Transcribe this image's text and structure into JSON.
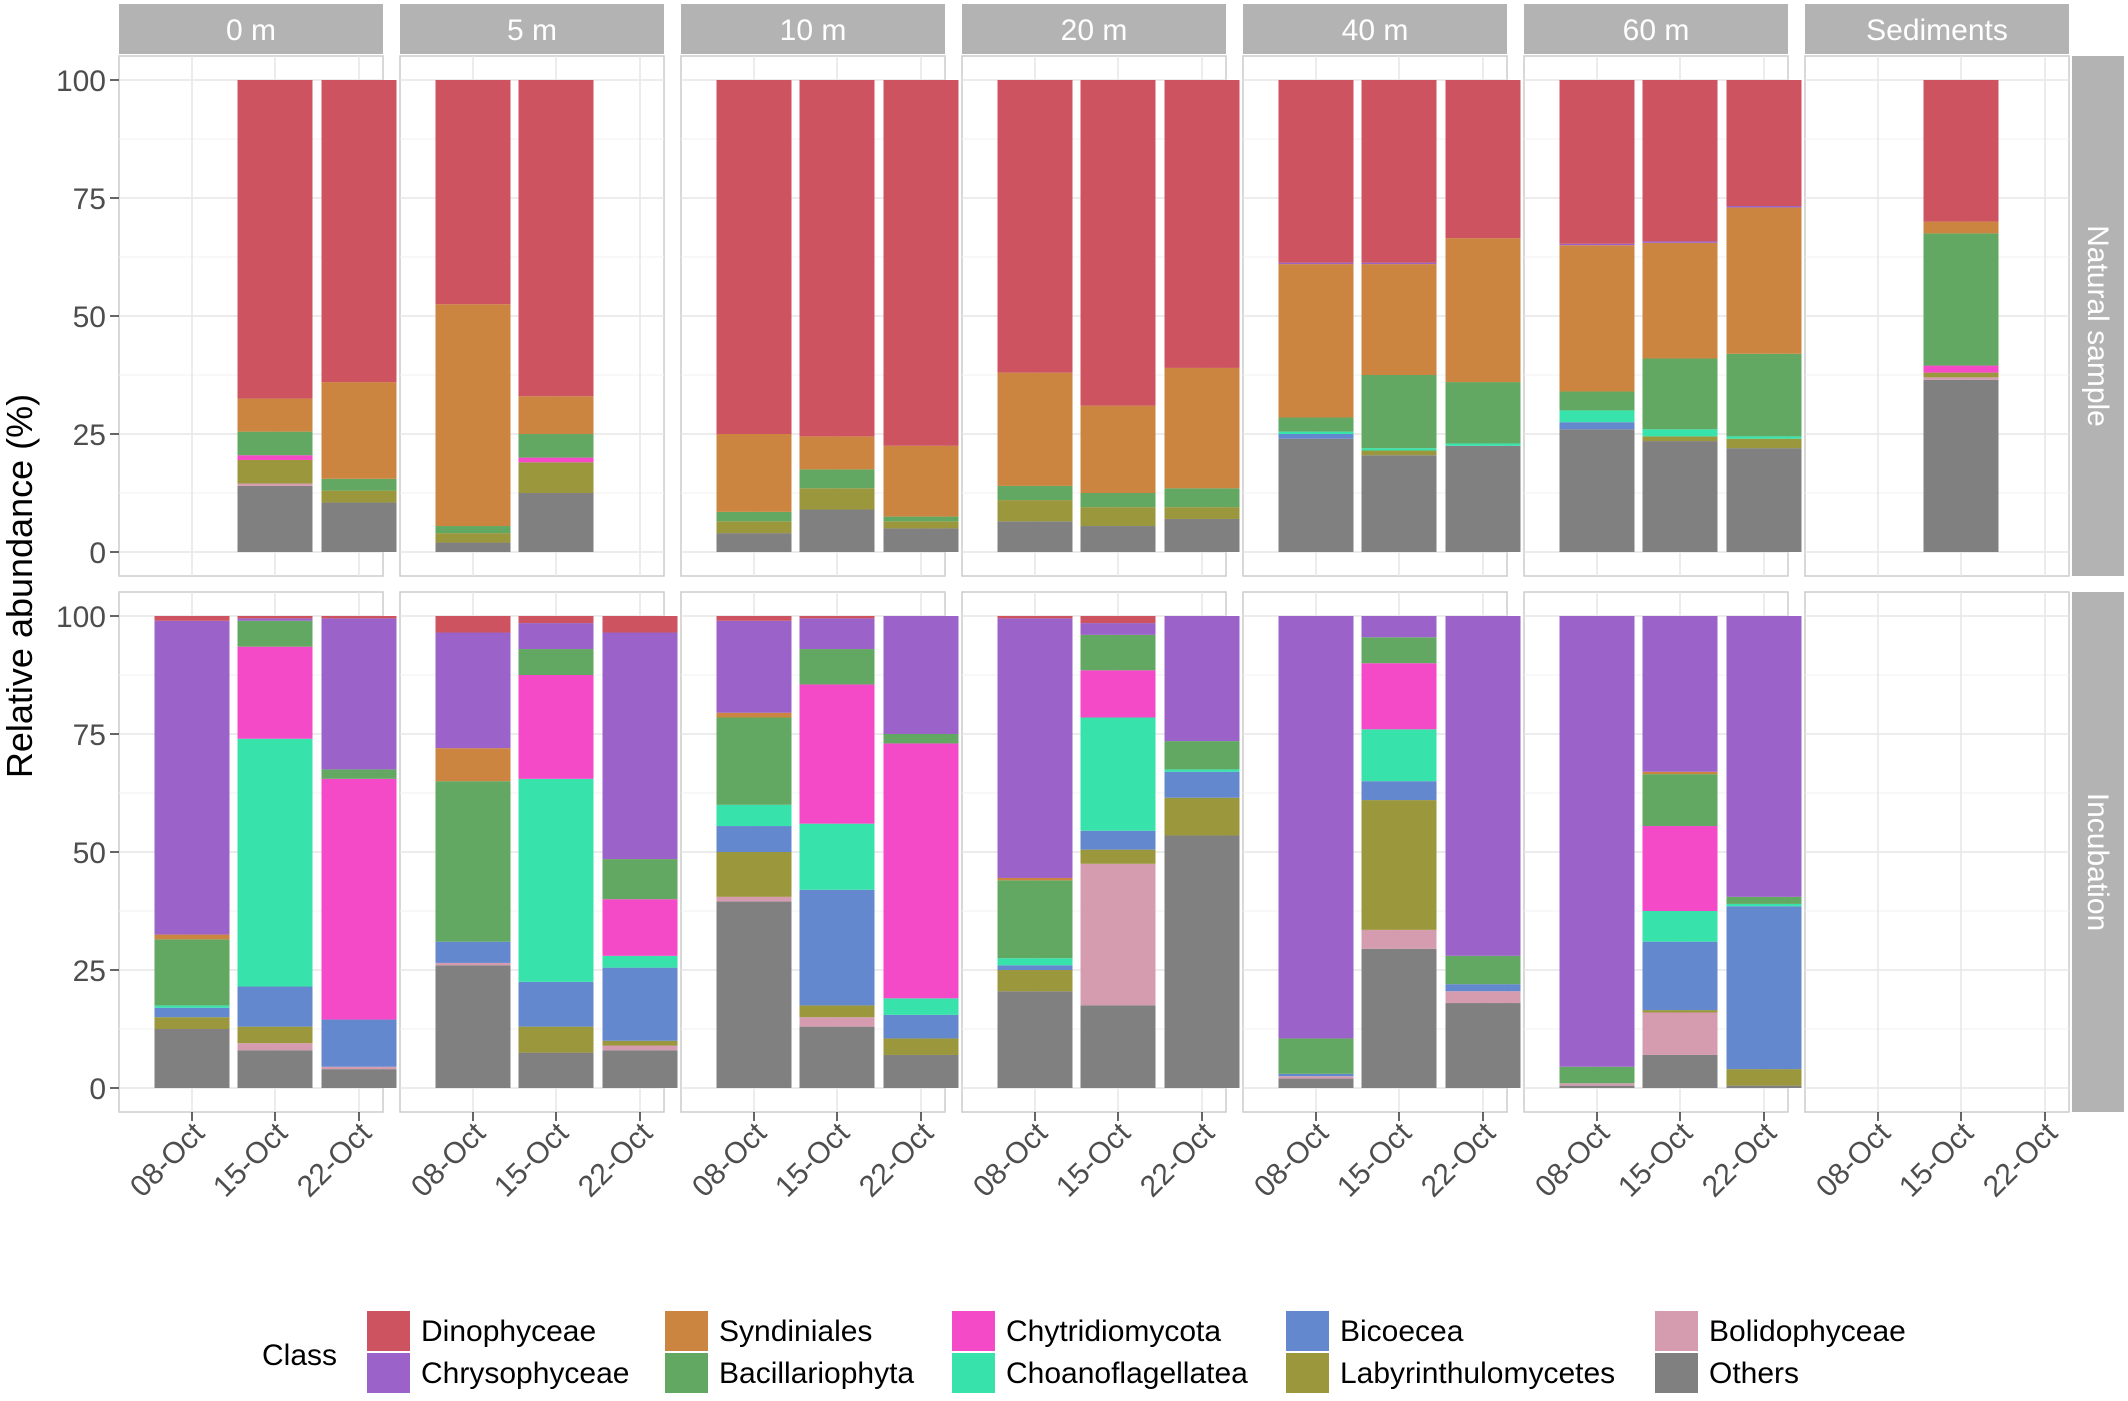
{
  "chart_data": {
    "type": "bar",
    "stacked": true,
    "ylabel": "Relative abundance (%)",
    "xlabel": "",
    "ylim": [
      0,
      100
    ],
    "yticks": [
      0,
      25,
      50,
      75,
      100
    ],
    "grid": true,
    "legend_position": "bottom",
    "legend_title": "Class",
    "categories": [
      "08-Oct",
      "15-Oct",
      "22-Oct"
    ],
    "columns": [
      "0 m",
      "5 m",
      "10 m",
      "20 m",
      "40 m",
      "60 m",
      "Sediments"
    ],
    "rows": [
      "Natural sample",
      "Incubation"
    ],
    "classes": [
      {
        "name": "Dinophyceae",
        "color": "#CD5360"
      },
      {
        "name": "Chrysophyceae",
        "color": "#9B63C9"
      },
      {
        "name": "Syndiniales",
        "color": "#CC8540"
      },
      {
        "name": "Bacillariophyta",
        "color": "#63A862"
      },
      {
        "name": "Chytridiomycota",
        "color": "#F54AC7"
      },
      {
        "name": "Choanoflagellatea",
        "color": "#38E2AB"
      },
      {
        "name": "Bicoecea",
        "color": "#6488CE"
      },
      {
        "name": "Labyrinthulomycetes",
        "color": "#9B973C"
      },
      {
        "name": "Bolidophyceae",
        "color": "#D59CB0"
      },
      {
        "name": "Others",
        "color": "#808080"
      }
    ],
    "stack_order": [
      "Others",
      "Bolidophyceae",
      "Labyrinthulomycetes",
      "Bicoecea",
      "Choanoflagellatea",
      "Chytridiomycota",
      "Bacillariophyta",
      "Syndiniales",
      "Chrysophyceae",
      "Dinophyceae"
    ],
    "panels": [
      {
        "row": "Natural sample",
        "column": "0 m",
        "bars": [
          {
            "x": "15-Oct",
            "values": {
              "Others": 14,
              "Labyrinthulomycetes": 5,
              "Bolidophyceae": 0.5,
              "Chytridiomycota": 1,
              "Bacillariophyta": 5,
              "Syndiniales": 7,
              "Dinophyceae": 67.5
            }
          },
          {
            "x": "22-Oct",
            "values": {
              "Others": 10.5,
              "Labyrinthulomycetes": 2.5,
              "Bacillariophyta": 2.5,
              "Syndiniales": 20.5,
              "Dinophyceae": 64
            }
          }
        ]
      },
      {
        "row": "Natural sample",
        "column": "5 m",
        "bars": [
          {
            "x": "08-Oct",
            "values": {
              "Others": 2,
              "Labyrinthulomycetes": 2,
              "Bacillariophyta": 1.5,
              "Syndiniales": 47,
              "Dinophyceae": 47.5
            }
          },
          {
            "x": "15-Oct",
            "values": {
              "Others": 12.5,
              "Labyrinthulomycetes": 6.5,
              "Chytridiomycota": 1,
              "Bacillariophyta": 5,
              "Syndiniales": 8,
              "Dinophyceae": 67
            }
          }
        ]
      },
      {
        "row": "Natural sample",
        "column": "10 m",
        "bars": [
          {
            "x": "08-Oct",
            "values": {
              "Others": 4,
              "Labyrinthulomycetes": 2.5,
              "Bacillariophyta": 2,
              "Syndiniales": 16.5,
              "Dinophyceae": 75
            }
          },
          {
            "x": "15-Oct",
            "values": {
              "Others": 9,
              "Labyrinthulomycetes": 4.5,
              "Bacillariophyta": 4,
              "Syndiniales": 7,
              "Dinophyceae": 75.5
            }
          },
          {
            "x": "22-Oct",
            "values": {
              "Others": 5,
              "Labyrinthulomycetes": 1.5,
              "Bacillariophyta": 1,
              "Syndiniales": 15,
              "Dinophyceae": 77.5
            }
          }
        ]
      },
      {
        "row": "Natural sample",
        "column": "20 m",
        "bars": [
          {
            "x": "08-Oct",
            "values": {
              "Others": 6.5,
              "Labyrinthulomycetes": 4.5,
              "Bacillariophyta": 3,
              "Syndiniales": 24,
              "Dinophyceae": 62
            }
          },
          {
            "x": "15-Oct",
            "values": {
              "Others": 5.5,
              "Labyrinthulomycetes": 4,
              "Bacillariophyta": 3,
              "Syndiniales": 18.5,
              "Dinophyceae": 69
            }
          },
          {
            "x": "22-Oct",
            "values": {
              "Others": 7,
              "Labyrinthulomycetes": 2.5,
              "Bacillariophyta": 4,
              "Syndiniales": 25.5,
              "Dinophyceae": 61
            }
          }
        ]
      },
      {
        "row": "Natural sample",
        "column": "40 m",
        "bars": [
          {
            "x": "08-Oct",
            "values": {
              "Others": 24,
              "Bicoecea": 1,
              "Choanoflagellatea": 0.5,
              "Bacillariophyta": 3,
              "Syndiniales": 32.5,
              "Chrysophyceae": 0.3,
              "Dinophyceae": 38.7
            }
          },
          {
            "x": "15-Oct",
            "values": {
              "Others": 20.5,
              "Labyrinthulomycetes": 1,
              "Choanoflagellatea": 0.5,
              "Bacillariophyta": 15.5,
              "Syndiniales": 23.5,
              "Chrysophyceae": 0.3,
              "Dinophyceae": 38.7
            }
          },
          {
            "x": "22-Oct",
            "values": {
              "Others": 22.5,
              "Choanoflagellatea": 0.5,
              "Bacillariophyta": 13,
              "Syndiniales": 30.5,
              "Dinophyceae": 33.5
            }
          }
        ]
      },
      {
        "row": "Natural sample",
        "column": "60 m",
        "bars": [
          {
            "x": "08-Oct",
            "values": {
              "Others": 26,
              "Bicoecea": 1.5,
              "Choanoflagellatea": 2.5,
              "Bacillariophyta": 4,
              "Syndiniales": 31,
              "Chrysophyceae": 0.3,
              "Dinophyceae": 34.7
            }
          },
          {
            "x": "15-Oct",
            "values": {
              "Others": 23.5,
              "Labyrinthulomycetes": 1,
              "Choanoflagellatea": 1.5,
              "Bacillariophyta": 15,
              "Syndiniales": 24.5,
              "Chrysophyceae": 0.3,
              "Dinophyceae": 34.2
            }
          },
          {
            "x": "22-Oct",
            "values": {
              "Others": 22,
              "Labyrinthulomycetes": 2,
              "Choanoflagellatea": 0.5,
              "Bacillariophyta": 17.5,
              "Syndiniales": 31,
              "Chrysophyceae": 0.3,
              "Dinophyceae": 26.7
            }
          }
        ]
      },
      {
        "row": "Natural sample",
        "column": "Sediments",
        "bars": [
          {
            "x": "15-Oct",
            "values": {
              "Others": 36.5,
              "Labyrinthulomycetes": 1,
              "Bolidophyceae": 0.5,
              "Chytridiomycota": 1.5,
              "Bacillariophyta": 28,
              "Syndiniales": 2.5,
              "Dinophyceae": 30
            }
          }
        ]
      },
      {
        "row": "Incubation",
        "column": "0 m",
        "bars": [
          {
            "x": "08-Oct",
            "values": {
              "Others": 12.5,
              "Labyrinthulomycetes": 2.5,
              "Bicoecea": 2,
              "Choanoflagellatea": 0.5,
              "Bacillariophyta": 14,
              "Syndiniales": 1,
              "Chrysophyceae": 66.5,
              "Dinophyceae": 1
            }
          },
          {
            "x": "15-Oct",
            "values": {
              "Others": 8,
              "Bolidophyceae": 1.5,
              "Labyrinthulomycetes": 3.5,
              "Bicoecea": 8.5,
              "Choanoflagellatea": 52.5,
              "Chytridiomycota": 19.5,
              "Bacillariophyta": 5.5,
              "Chrysophyceae": 0.5,
              "Dinophyceae": 0.5
            }
          },
          {
            "x": "22-Oct",
            "values": {
              "Others": 4,
              "Bolidophyceae": 0.5,
              "Bicoecea": 10,
              "Chytridiomycota": 51,
              "Bacillariophyta": 2,
              "Chrysophyceae": 32,
              "Dinophyceae": 0.5
            }
          }
        ]
      },
      {
        "row": "Incubation",
        "column": "5 m",
        "bars": [
          {
            "x": "08-Oct",
            "values": {
              "Others": 26,
              "Bolidophyceae": 0.5,
              "Bicoecea": 4.5,
              "Bacillariophyta": 34,
              "Syndiniales": 7,
              "Chrysophyceae": 24.5,
              "Dinophyceae": 3.5
            }
          },
          {
            "x": "15-Oct",
            "values": {
              "Others": 7.5,
              "Labyrinthulomycetes": 5.5,
              "Bicoecea": 9.5,
              "Choanoflagellatea": 43,
              "Chytridiomycota": 22,
              "Bacillariophyta": 5.5,
              "Chrysophyceae": 5.5,
              "Dinophyceae": 1.5
            }
          },
          {
            "x": "22-Oct",
            "values": {
              "Others": 8,
              "Bolidophyceae": 1,
              "Labyrinthulomycetes": 1,
              "Bicoecea": 15.5,
              "Choanoflagellatea": 2.5,
              "Chytridiomycota": 12,
              "Bacillariophyta": 8.5,
              "Chrysophyceae": 48,
              "Dinophyceae": 3.5
            }
          }
        ]
      },
      {
        "row": "Incubation",
        "column": "10 m",
        "bars": [
          {
            "x": "08-Oct",
            "values": {
              "Others": 39.5,
              "Bolidophyceae": 1,
              "Labyrinthulomycetes": 9.5,
              "Bicoecea": 5.5,
              "Choanoflagellatea": 4.5,
              "Bacillariophyta": 18.5,
              "Syndiniales": 1,
              "Chrysophyceae": 19.5,
              "Dinophyceae": 1
            }
          },
          {
            "x": "15-Oct",
            "values": {
              "Others": 13,
              "Bolidophyceae": 2,
              "Labyrinthulomycetes": 2.5,
              "Bicoecea": 24.5,
              "Choanoflagellatea": 14,
              "Chytridiomycota": 29.5,
              "Bacillariophyta": 7.5,
              "Chrysophyceae": 6.5,
              "Dinophyceae": 0.5
            }
          },
          {
            "x": "22-Oct",
            "values": {
              "Others": 7,
              "Labyrinthulomycetes": 3.5,
              "Bicoecea": 5,
              "Choanoflagellatea": 3.5,
              "Chytridiomycota": 54,
              "Bacillariophyta": 2,
              "Chrysophyceae": 25
            }
          }
        ]
      },
      {
        "row": "Incubation",
        "column": "20 m",
        "bars": [
          {
            "x": "08-Oct",
            "values": {
              "Others": 20.5,
              "Labyrinthulomycetes": 4.5,
              "Bicoecea": 1,
              "Choanoflagellatea": 1.5,
              "Bacillariophyta": 16.5,
              "Syndiniales": 0.5,
              "Chrysophyceae": 55,
              "Dinophyceae": 0.5
            }
          },
          {
            "x": "15-Oct",
            "values": {
              "Others": 17.5,
              "Bolidophyceae": 30,
              "Labyrinthulomycetes": 3,
              "Bicoecea": 4,
              "Choanoflagellatea": 24,
              "Chytridiomycota": 10,
              "Bacillariophyta": 7.5,
              "Chrysophyceae": 2.5,
              "Dinophyceae": 1.5
            }
          },
          {
            "x": "22-Oct",
            "values": {
              "Others": 53.5,
              "Labyrinthulomycetes": 8,
              "Bicoecea": 5.5,
              "Choanoflagellatea": 0.5,
              "Bacillariophyta": 6,
              "Chrysophyceae": 26.5
            }
          }
        ]
      },
      {
        "row": "Incubation",
        "column": "40 m",
        "bars": [
          {
            "x": "08-Oct",
            "values": {
              "Others": 2,
              "Bolidophyceae": 0.5,
              "Bicoecea": 0.5,
              "Bacillariophyta": 7.5,
              "Chrysophyceae": 89.5
            }
          },
          {
            "x": "15-Oct",
            "values": {
              "Others": 29.5,
              "Bolidophyceae": 4,
              "Labyrinthulomycetes": 27.5,
              "Bicoecea": 4,
              "Choanoflagellatea": 11,
              "Chytridiomycota": 14,
              "Bacillariophyta": 5.5,
              "Chrysophyceae": 4.5
            }
          },
          {
            "x": "22-Oct",
            "values": {
              "Others": 18,
              "Bolidophyceae": 2.5,
              "Bicoecea": 1.5,
              "Bacillariophyta": 6,
              "Chrysophyceae": 72
            }
          }
        ]
      },
      {
        "row": "Incubation",
        "column": "60 m",
        "bars": [
          {
            "x": "08-Oct",
            "values": {
              "Others": 0.5,
              "Bolidophyceae": 0.5,
              "Bacillariophyta": 3.5,
              "Chrysophyceae": 95.5
            }
          },
          {
            "x": "15-Oct",
            "values": {
              "Others": 7,
              "Bolidophyceae": 9,
              "Labyrinthulomycetes": 0.5,
              "Bicoecea": 14.5,
              "Choanoflagellatea": 6.5,
              "Chytridiomycota": 18,
              "Bacillariophyta": 11,
              "Syndiniales": 0.5,
              "Chrysophyceae": 33
            }
          },
          {
            "x": "22-Oct",
            "values": {
              "Others": 0.5,
              "Labyrinthulomycetes": 3.5,
              "Bicoecea": 34.5,
              "Choanoflagellatea": 0.5,
              "Bacillariophyta": 1.5,
              "Chrysophyceae": 59.5
            }
          }
        ]
      },
      {
        "row": "Incubation",
        "column": "Sediments",
        "bars": []
      }
    ]
  }
}
